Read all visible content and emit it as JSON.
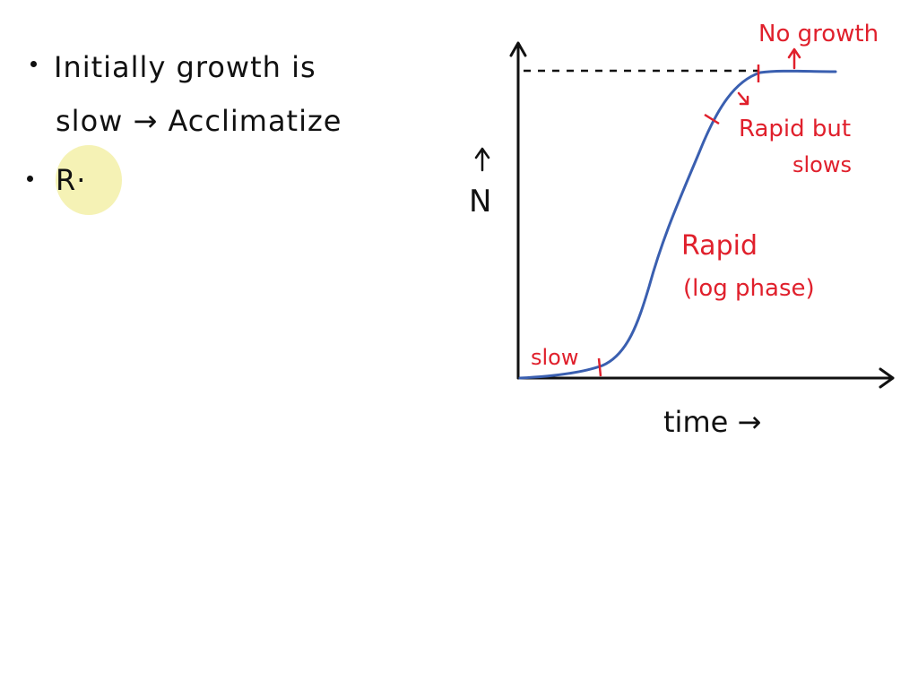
{
  "notes": {
    "line1": "Initially growth is",
    "line2": "slow → Acclimatize",
    "line3": "R·"
  },
  "graph": {
    "y_axis_label": "N",
    "x_axis_label": "time →",
    "annotations": {
      "no_growth": "No growth",
      "rapid_but": "Rapid but",
      "slows": "slows",
      "rapid": "Rapid",
      "log_phase": "(log phase)",
      "slow": "slow"
    }
  },
  "colors": {
    "ink": "#111111",
    "curve": "#3a5fb0",
    "annotation": "#e0202c",
    "highlight": "#f4f1ad"
  }
}
